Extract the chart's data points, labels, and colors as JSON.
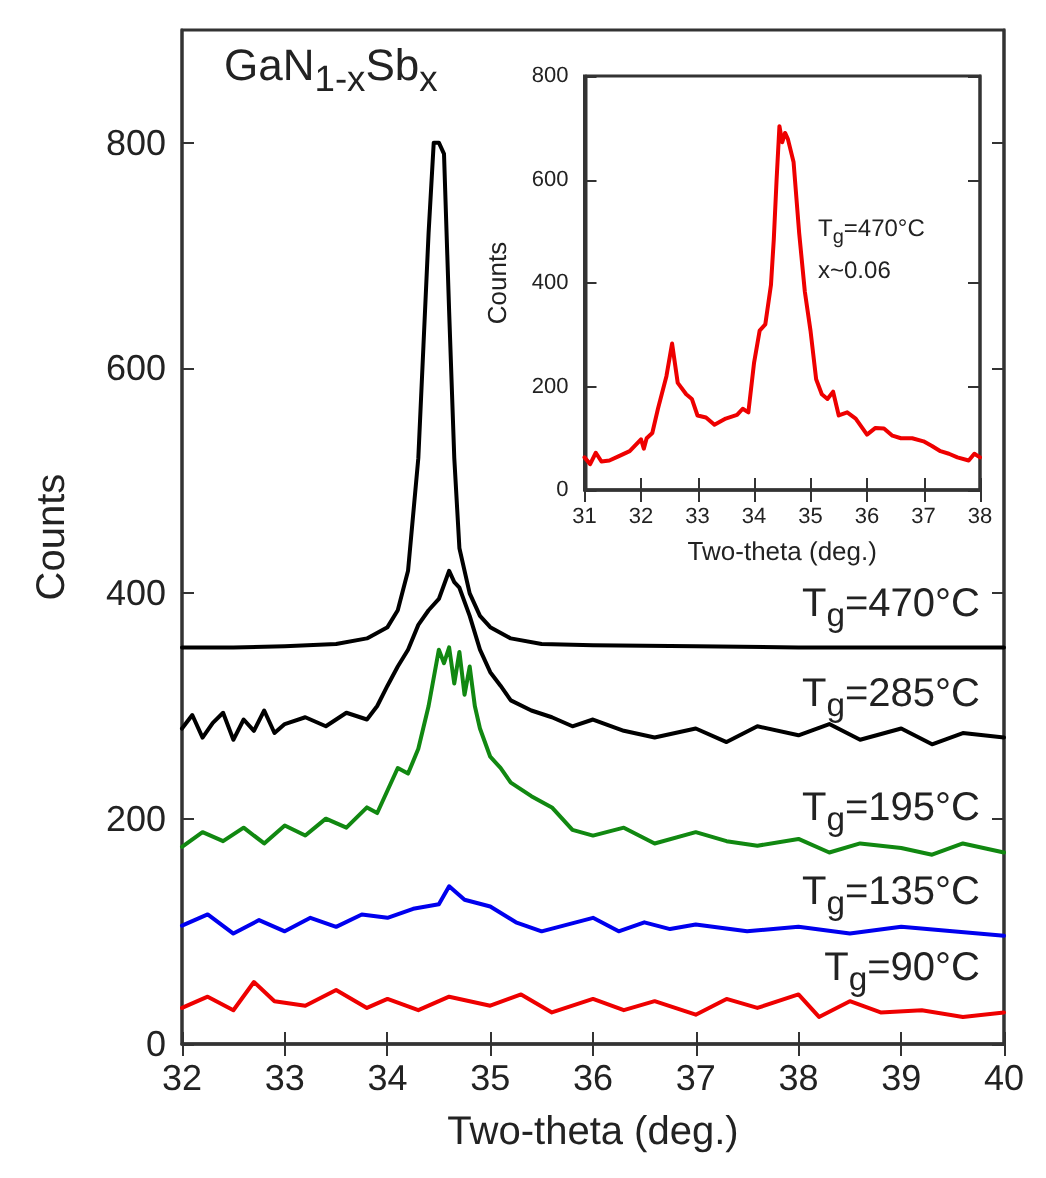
{
  "chart_data": [
    {
      "type": "line",
      "title": "GaN$_{1-x}$Sb$_{x}$",
      "xlabel": "Two-theta (deg.)",
      "ylabel": "Counts",
      "xlim": [
        32,
        40
      ],
      "ylim": [
        0,
        900
      ],
      "xticks": [
        32,
        33,
        34,
        35,
        36,
        37,
        38,
        39,
        40
      ],
      "yticks": [
        0,
        200,
        400,
        600,
        800
      ],
      "grid": false,
      "legend": false,
      "marker": "none",
      "line_style": "solid",
      "series": [
        {
          "name": "T$_{g}$=470°C",
          "color": "#000000",
          "x": [
            32,
            32.5,
            33,
            33.5,
            33.8,
            34.0,
            34.1,
            34.2,
            34.3,
            34.35,
            34.4,
            34.45,
            34.5,
            34.55,
            34.6,
            34.65,
            34.7,
            34.8,
            34.9,
            35.0,
            35.2,
            35.5,
            36,
            37,
            38,
            39,
            40
          ],
          "values": [
            352,
            352,
            353,
            355,
            360,
            370,
            385,
            420,
            520,
            620,
            720,
            800,
            800,
            790,
            650,
            520,
            440,
            400,
            380,
            370,
            360,
            355,
            354,
            353,
            352,
            352,
            352
          ]
        },
        {
          "name": "T$_{g}$=285°C",
          "color": "#000000",
          "x": [
            32,
            32.1,
            32.2,
            32.3,
            32.4,
            32.5,
            32.6,
            32.7,
            32.8,
            32.9,
            33.0,
            33.2,
            33.4,
            33.6,
            33.8,
            33.9,
            34.0,
            34.1,
            34.2,
            34.3,
            34.4,
            34.5,
            34.6,
            34.65,
            34.7,
            34.8,
            34.9,
            35.0,
            35.1,
            35.2,
            35.4,
            35.6,
            35.8,
            36.0,
            36.3,
            36.6,
            37.0,
            37.3,
            37.6,
            38.0,
            38.3,
            38.6,
            39.0,
            39.3,
            39.6,
            40
          ],
          "values": [
            280,
            292,
            272,
            285,
            294,
            270,
            288,
            278,
            296,
            276,
            284,
            290,
            282,
            294,
            288,
            300,
            318,
            335,
            350,
            372,
            385,
            395,
            420,
            410,
            405,
            380,
            350,
            330,
            318,
            305,
            296,
            290,
            282,
            288,
            278,
            272,
            280,
            268,
            282,
            274,
            284,
            270,
            280,
            266,
            276,
            272
          ]
        },
        {
          "name": "T$_{g}$=195°C",
          "color": "#118811",
          "x": [
            32,
            32.2,
            32.4,
            32.6,
            32.8,
            33.0,
            33.2,
            33.4,
            33.6,
            33.8,
            33.9,
            34.0,
            34.1,
            34.2,
            34.3,
            34.4,
            34.5,
            34.55,
            34.6,
            34.65,
            34.7,
            34.75,
            34.8,
            34.85,
            34.9,
            35.0,
            35.1,
            35.2,
            35.4,
            35.6,
            35.8,
            36.0,
            36.3,
            36.6,
            37.0,
            37.3,
            37.6,
            38.0,
            38.3,
            38.6,
            39.0,
            39.3,
            39.6,
            40
          ],
          "values": [
            175,
            188,
            180,
            192,
            178,
            194,
            185,
            200,
            192,
            210,
            205,
            225,
            245,
            240,
            262,
            300,
            350,
            338,
            352,
            320,
            348,
            310,
            335,
            300,
            280,
            255,
            245,
            232,
            220,
            210,
            190,
            185,
            192,
            178,
            188,
            180,
            176,
            182,
            170,
            178,
            174,
            168,
            178,
            170
          ]
        },
        {
          "name": "T$_{g}$=135°C",
          "color": "#0000ee",
          "x": [
            32,
            32.25,
            32.5,
            32.75,
            33,
            33.25,
            33.5,
            33.75,
            34,
            34.25,
            34.5,
            34.6,
            34.75,
            35,
            35.25,
            35.5,
            35.75,
            36,
            36.25,
            36.5,
            36.75,
            37,
            37.5,
            38,
            38.5,
            39,
            39.5,
            40
          ],
          "values": [
            105,
            115,
            98,
            110,
            100,
            112,
            104,
            115,
            112,
            120,
            124,
            140,
            128,
            122,
            108,
            100,
            106,
            112,
            100,
            108,
            102,
            106,
            100,
            104,
            98,
            104,
            100,
            96
          ]
        },
        {
          "name": "T$_{g}$=90°C",
          "color": "#ee0000",
          "x": [
            32,
            32.25,
            32.5,
            32.7,
            32.9,
            33.2,
            33.5,
            33.8,
            34,
            34.3,
            34.6,
            35,
            35.3,
            35.6,
            36,
            36.3,
            36.6,
            37,
            37.3,
            37.6,
            38,
            38.2,
            38.5,
            38.8,
            39.2,
            39.6,
            40
          ],
          "values": [
            32,
            42,
            30,
            55,
            38,
            34,
            48,
            32,
            40,
            30,
            42,
            34,
            44,
            28,
            40,
            30,
            38,
            26,
            40,
            32,
            44,
            24,
            38,
            28,
            30,
            24,
            28
          ]
        }
      ]
    },
    {
      "type": "line",
      "xlabel": "Two-theta (deg.)",
      "ylabel": "Counts",
      "xlim": [
        31,
        38
      ],
      "ylim": [
        0,
        800
      ],
      "xticks": [
        31,
        32,
        33,
        34,
        35,
        36,
        37,
        38
      ],
      "yticks": [
        0,
        200,
        400,
        600,
        800
      ],
      "grid": false,
      "legend": false,
      "marker": "none",
      "line_style": "solid",
      "annotations": [
        "T$_{g}$=470°C",
        "x~0.06"
      ],
      "series": [
        {
          "color": "#ee0000",
          "x": [
            31,
            31.1,
            31.2,
            31.3,
            31.44,
            31.6,
            31.8,
            32.0,
            32.05,
            32.1,
            32.2,
            32.3,
            32.45,
            32.55,
            32.65,
            32.8,
            32.9,
            33.0,
            33.15,
            33.3,
            33.5,
            33.7,
            33.8,
            33.9,
            34.0,
            34.1,
            34.2,
            34.3,
            34.35,
            34.4,
            34.45,
            34.5,
            34.55,
            34.6,
            34.7,
            34.8,
            34.9,
            35.0,
            35.1,
            35.2,
            35.3,
            35.4,
            35.5,
            35.65,
            35.8,
            36.0,
            36.15,
            36.3,
            36.45,
            36.6,
            36.8,
            37.0,
            37.15,
            37.3,
            37.45,
            37.6,
            37.8,
            37.9,
            38
          ],
          "values": [
            63,
            50,
            72,
            55,
            57,
            65,
            75,
            98,
            80,
            100,
            110,
            157,
            220,
            283,
            207,
            185,
            176,
            144,
            140,
            126,
            138,
            145,
            157,
            150,
            245,
            308,
            320,
            396,
            484,
            600,
            703,
            672,
            690,
            678,
            634,
            496,
            383,
            308,
            214,
            185,
            176,
            190,
            144,
            150,
            138,
            107,
            120,
            119,
            105,
            100,
            100,
            94,
            85,
            75,
            70,
            63,
            57,
            70,
            63
          ]
        }
      ]
    }
  ]
}
